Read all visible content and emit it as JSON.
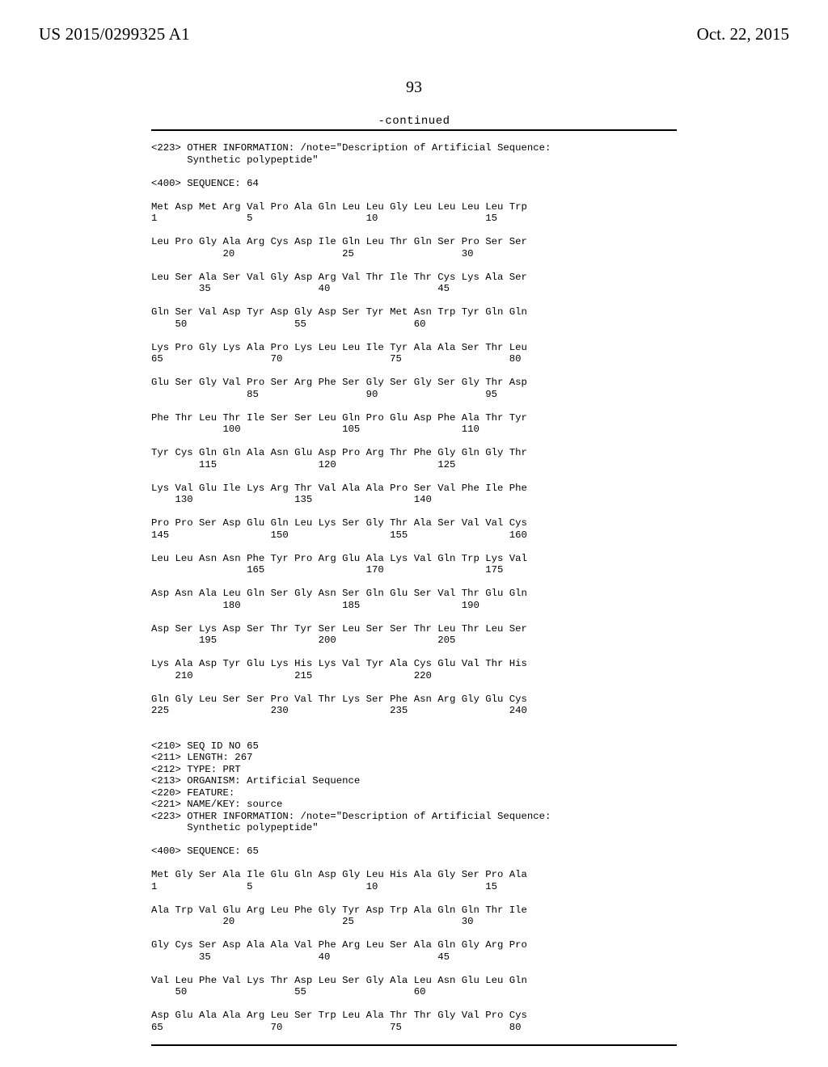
{
  "header": {
    "pub_number": "US 2015/0299325 A1",
    "pub_date": "Oct. 22, 2015"
  },
  "page_number": "93",
  "continued_label": "-continued",
  "sequence_listing": "<223> OTHER INFORMATION: /note=\"Description of Artificial Sequence:\n      Synthetic polypeptide\"\n\n<400> SEQUENCE: 64\n\nMet Asp Met Arg Val Pro Ala Gln Leu Leu Gly Leu Leu Leu Leu Trp\n1               5                   10                  15\n\nLeu Pro Gly Ala Arg Cys Asp Ile Gln Leu Thr Gln Ser Pro Ser Ser\n            20                  25                  30\n\nLeu Ser Ala Ser Val Gly Asp Arg Val Thr Ile Thr Cys Lys Ala Ser\n        35                  40                  45\n\nGln Ser Val Asp Tyr Asp Gly Asp Ser Tyr Met Asn Trp Tyr Gln Gln\n    50                  55                  60\n\nLys Pro Gly Lys Ala Pro Lys Leu Leu Ile Tyr Ala Ala Ser Thr Leu\n65                  70                  75                  80\n\nGlu Ser Gly Val Pro Ser Arg Phe Ser Gly Ser Gly Ser Gly Thr Asp\n                85                  90                  95\n\nPhe Thr Leu Thr Ile Ser Ser Leu Gln Pro Glu Asp Phe Ala Thr Tyr\n            100                 105                 110\n\nTyr Cys Gln Gln Ala Asn Glu Asp Pro Arg Thr Phe Gly Gln Gly Thr\n        115                 120                 125\n\nLys Val Glu Ile Lys Arg Thr Val Ala Ala Pro Ser Val Phe Ile Phe\n    130                 135                 140\n\nPro Pro Ser Asp Glu Gln Leu Lys Ser Gly Thr Ala Ser Val Val Cys\n145                 150                 155                 160\n\nLeu Leu Asn Asn Phe Tyr Pro Arg Glu Ala Lys Val Gln Trp Lys Val\n                165                 170                 175\n\nAsp Asn Ala Leu Gln Ser Gly Asn Ser Gln Glu Ser Val Thr Glu Gln\n            180                 185                 190\n\nAsp Ser Lys Asp Ser Thr Tyr Ser Leu Ser Ser Thr Leu Thr Leu Ser\n        195                 200                 205\n\nLys Ala Asp Tyr Glu Lys His Lys Val Tyr Ala Cys Glu Val Thr His\n    210                 215                 220\n\nGln Gly Leu Ser Ser Pro Val Thr Lys Ser Phe Asn Arg Gly Glu Cys\n225                 230                 235                 240\n\n\n<210> SEQ ID NO 65\n<211> LENGTH: 267\n<212> TYPE: PRT\n<213> ORGANISM: Artificial Sequence\n<220> FEATURE:\n<221> NAME/KEY: source\n<223> OTHER INFORMATION: /note=\"Description of Artificial Sequence:\n      Synthetic polypeptide\"\n\n<400> SEQUENCE: 65\n\nMet Gly Ser Ala Ile Glu Gln Asp Gly Leu His Ala Gly Ser Pro Ala\n1               5                   10                  15\n\nAla Trp Val Glu Arg Leu Phe Gly Tyr Asp Trp Ala Gln Gln Thr Ile\n            20                  25                  30\n\nGly Cys Ser Asp Ala Ala Val Phe Arg Leu Ser Ala Gln Gly Arg Pro\n        35                  40                  45\n\nVal Leu Phe Val Lys Thr Asp Leu Ser Gly Ala Leu Asn Glu Leu Gln\n    50                  55                  60\n\nAsp Glu Ala Ala Arg Leu Ser Trp Leu Ala Thr Thr Gly Val Pro Cys\n65                  70                  75                  80"
}
